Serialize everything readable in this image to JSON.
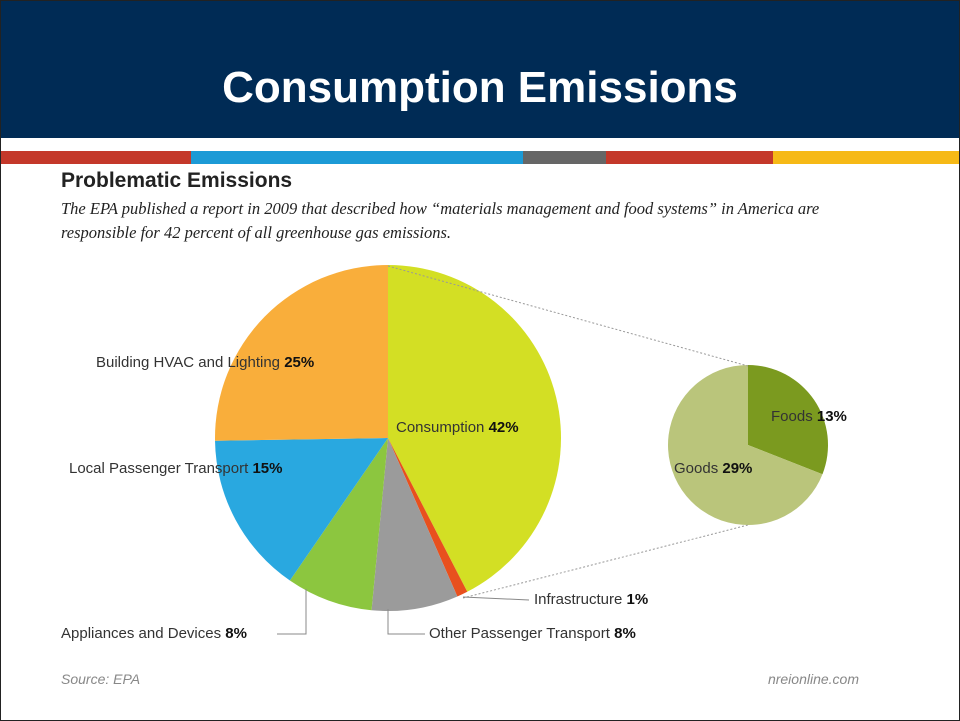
{
  "slide_title": "Consumption Emissions",
  "chart_data": [
    {
      "type": "pie",
      "title": "Problematic Emissions",
      "subtitle": "The EPA published a report in 2009 that described how “materials management and food systems” in America are responsible for 42 percent of all greenhouse gas emissions.",
      "categories": [
        "Consumption",
        "Infrastructure",
        "Other Passenger Transport",
        "Appliances and Devices",
        "Local Passenger Transport",
        "Building HVAC and Lighting"
      ],
      "values": [
        42,
        1,
        8,
        8,
        15,
        25
      ],
      "value_labels": [
        "42%",
        "1%",
        "8%",
        "8%",
        "15%",
        "25%"
      ],
      "colors": [
        "#d3df24",
        "#e8501e",
        "#9b9b9b",
        "#8cc63f",
        "#29a8e0",
        "#f9ae3b"
      ],
      "source": "Source: EPA",
      "credit": "nreionline.com"
    },
    {
      "type": "pie",
      "categories": [
        "Foods",
        "Goods"
      ],
      "values": [
        13,
        29
      ],
      "value_labels": [
        "13%",
        "29%"
      ],
      "colors": [
        "#7b9a1f",
        "#bac57b"
      ]
    }
  ]
}
